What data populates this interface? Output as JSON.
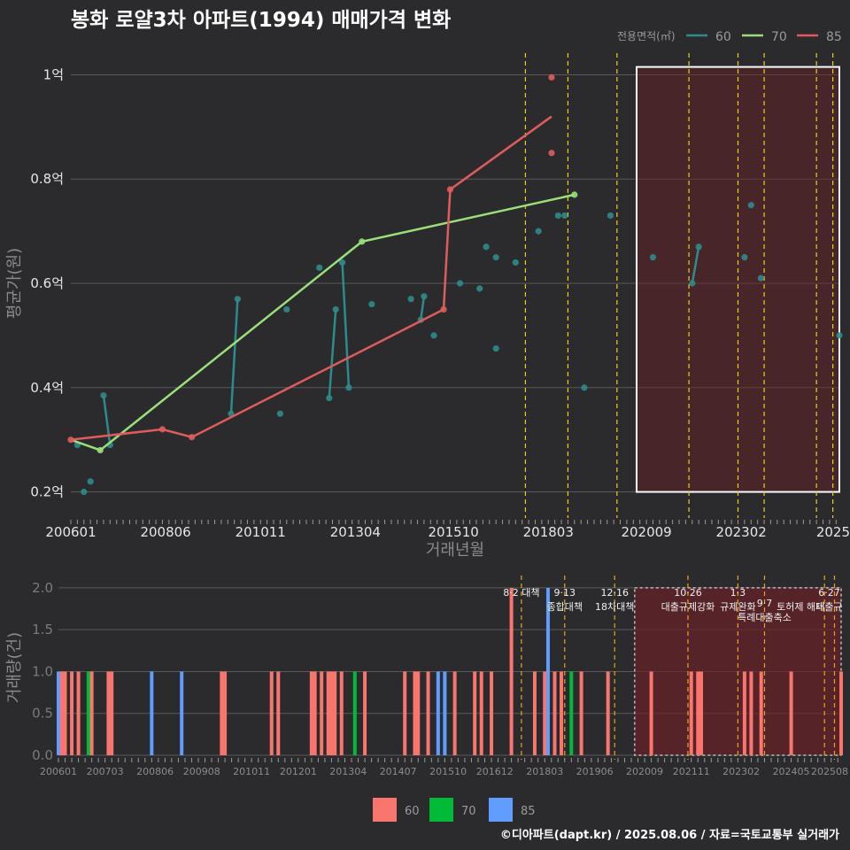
{
  "colors": {
    "s60": "#2e8b8b",
    "s70": "#99e07a",
    "s85": "#e05c5c",
    "b60": "#f8766d",
    "b70": "#00ba38",
    "b85": "#619cff"
  },
  "chart_data": [
    {
      "type": "line",
      "title": "봉화 로얄3차 아파트(1994) 매매가격 변화",
      "xlabel": "거래년월",
      "ylabel": "평균가(원)",
      "xlim": [
        "2006-01",
        "2025-08"
      ],
      "ylim": [
        0.15,
        1.05
      ],
      "x_ticks": [
        "200601",
        "200806",
        "201011",
        "201304",
        "201510",
        "201803",
        "202009",
        "202302",
        "2025"
      ],
      "y_ticks": [
        0.2,
        0.4,
        0.6,
        0.8,
        1.0
      ],
      "y_tick_labels": [
        "0.2억",
        "0.4억",
        "0.6억",
        "0.8억",
        "1억"
      ],
      "grid": true,
      "legend": {
        "title": "전용면적(㎡)",
        "position": "top-right",
        "items": [
          "60",
          "70",
          "85"
        ]
      },
      "series": [
        {
          "name": "60",
          "color": "s60",
          "points": [
            [
              "2006-03",
              0.29
            ],
            [
              "2006-05",
              0.2
            ],
            [
              "2006-07",
              0.22
            ],
            [
              "2006-11",
              0.385
            ],
            [
              "2007-01",
              0.29
            ],
            [
              "2010-02",
              0.35
            ],
            [
              "2010-04",
              0.57
            ],
            [
              "2011-05",
              0.35
            ],
            [
              "2011-07",
              0.55
            ],
            [
              "2012-05",
              0.63
            ],
            [
              "2012-08",
              0.38
            ],
            [
              "2012-10",
              0.55
            ],
            [
              "2012-12",
              0.64
            ],
            [
              "2013-02",
              0.4
            ],
            [
              "2013-09",
              0.56
            ],
            [
              "2014-09",
              0.57
            ],
            [
              "2014-12",
              0.53
            ],
            [
              "2015-01",
              0.575
            ],
            [
              "2015-04",
              0.5
            ],
            [
              "2015-12",
              0.6
            ],
            [
              "2016-06",
              0.59
            ],
            [
              "2016-08",
              0.67
            ],
            [
              "2016-11",
              0.475
            ],
            [
              "2016-11",
              0.65
            ],
            [
              "2017-05",
              0.64
            ],
            [
              "2017-12",
              0.7
            ],
            [
              "2018-06",
              0.73
            ],
            [
              "2018-08",
              0.73
            ],
            [
              "2019-02",
              0.4
            ],
            [
              "2019-10",
              0.73
            ],
            [
              "2020-11",
              0.65
            ],
            [
              "2021-11",
              0.6
            ],
            [
              "2022-01",
              0.67
            ],
            [
              "2023-03",
              0.65
            ],
            [
              "2023-05",
              0.75
            ],
            [
              "2023-08",
              0.61
            ],
            [
              "2025-08",
              0.5
            ]
          ],
          "lines": [
            [
              [
                "2006-11",
                0.385
              ],
              [
                "2007-01",
                0.29
              ]
            ],
            [
              [
                "2010-02",
                0.35
              ],
              [
                "2010-04",
                0.57
              ]
            ],
            [
              [
                "2012-08",
                0.38
              ],
              [
                "2012-10",
                0.55
              ]
            ],
            [
              [
                "2012-12",
                0.64
              ],
              [
                "2013-02",
                0.4
              ]
            ],
            [
              [
                "2014-12",
                0.53
              ],
              [
                "2015-01",
                0.575
              ]
            ],
            [
              [
                "2021-11",
                0.6
              ],
              [
                "2022-01",
                0.67
              ]
            ]
          ]
        },
        {
          "name": "70",
          "color": "s70",
          "points": [
            [
              "2006-10",
              0.28
            ],
            [
              "2013-06",
              0.68
            ],
            [
              "2018-11",
              0.77
            ]
          ],
          "lines": [
            [
              [
                "2006-01",
                0.3
              ],
              [
                "2006-10",
                0.28
              ],
              [
                "2013-06",
                0.68
              ],
              [
                "2018-11",
                0.77
              ]
            ]
          ]
        },
        {
          "name": "85",
          "color": "s85",
          "points": [
            [
              "2006-01",
              0.3
            ],
            [
              "2008-05",
              0.32
            ],
            [
              "2009-02",
              0.305
            ],
            [
              "2015-07",
              0.55
            ],
            [
              "2015-09",
              0.78
            ],
            [
              "2018-04",
              0.85
            ],
            [
              "2018-04",
              0.995
            ]
          ],
          "lines": [
            [
              [
                "2006-01",
                0.3
              ],
              [
                "2008-05",
                0.32
              ],
              [
                "2009-02",
                0.305
              ],
              [
                "2015-07",
                0.55
              ],
              [
                "2015-09",
                0.78
              ],
              [
                "2018-04",
                0.92
              ]
            ]
          ]
        }
      ],
      "event_lines": [
        "2017-08",
        "2018-09",
        "2019-12",
        "2021-10",
        "2023-01",
        "2023-09",
        "2025-01",
        "2025-06"
      ],
      "highlight_region": [
        "2020-06",
        "2025-08"
      ]
    },
    {
      "type": "bar",
      "xlabel": "",
      "ylabel": "거래량(건)",
      "ylim": [
        0,
        2.0
      ],
      "x_ticks": [
        "200601",
        "200703",
        "200806",
        "200908",
        "201011",
        "201201",
        "201304",
        "201407",
        "201510",
        "201612",
        "201803",
        "201906",
        "202009",
        "202111",
        "202302",
        "202405",
        "202508"
      ],
      "y_ticks": [
        0.0,
        0.5,
        1.0,
        1.5,
        2.0
      ],
      "y_tick_labels": [
        "0.0",
        "0.5",
        "1.0",
        "1.5",
        "2.0"
      ],
      "legend": {
        "position": "bottom",
        "items": [
          "60",
          "70",
          "85"
        ]
      },
      "bars": [
        [
          "2006-01",
          1,
          "85"
        ],
        [
          "2006-02",
          1,
          "60"
        ],
        [
          "2006-03",
          1,
          "60"
        ],
        [
          "2006-05",
          1,
          "60"
        ],
        [
          "2006-07",
          1,
          "60"
        ],
        [
          "2006-10",
          1,
          "70"
        ],
        [
          "2006-11",
          1,
          "60"
        ],
        [
          "2007-04",
          1,
          "60"
        ],
        [
          "2007-05",
          1,
          "60"
        ],
        [
          "2008-05",
          1,
          "85"
        ],
        [
          "2009-02",
          1,
          "85"
        ],
        [
          "2010-02",
          1,
          "60"
        ],
        [
          "2010-03",
          1,
          "60"
        ],
        [
          "2011-05",
          1,
          "60"
        ],
        [
          "2011-07",
          1,
          "60"
        ],
        [
          "2012-05",
          1,
          "60"
        ],
        [
          "2012-06",
          1,
          "60"
        ],
        [
          "2012-08",
          1,
          "60"
        ],
        [
          "2012-10",
          1,
          "60"
        ],
        [
          "2012-11",
          1,
          "60"
        ],
        [
          "2012-12",
          1,
          "60"
        ],
        [
          "2013-02",
          1,
          "60"
        ],
        [
          "2013-06",
          1,
          "70"
        ],
        [
          "2013-09",
          1,
          "60"
        ],
        [
          "2014-09",
          1,
          "60"
        ],
        [
          "2014-12",
          1,
          "60"
        ],
        [
          "2015-01",
          1,
          "60"
        ],
        [
          "2015-04",
          1,
          "60"
        ],
        [
          "2015-07",
          1,
          "85"
        ],
        [
          "2015-09",
          1,
          "85"
        ],
        [
          "2015-12",
          1,
          "60"
        ],
        [
          "2016-06",
          1,
          "60"
        ],
        [
          "2016-08",
          1,
          "60"
        ],
        [
          "2016-11",
          1,
          "60"
        ],
        [
          "2017-05",
          2,
          "60"
        ],
        [
          "2017-12",
          1,
          "60"
        ],
        [
          "2018-03",
          1,
          "60"
        ],
        [
          "2018-04",
          2,
          "85"
        ],
        [
          "2018-06",
          1,
          "60"
        ],
        [
          "2018-08",
          1,
          "60"
        ],
        [
          "2018-11",
          1,
          "70"
        ],
        [
          "2019-02",
          1,
          "60"
        ],
        [
          "2019-10",
          1,
          "60"
        ],
        [
          "2020-11",
          1,
          "60"
        ],
        [
          "2021-11",
          1,
          "60"
        ],
        [
          "2022-01",
          1,
          "60"
        ],
        [
          "2022-02",
          1,
          "60"
        ],
        [
          "2023-03",
          1,
          "60"
        ],
        [
          "2023-05",
          1,
          "60"
        ],
        [
          "2023-08",
          1,
          "60"
        ],
        [
          "2024-05",
          1,
          "60"
        ],
        [
          "2025-08",
          1,
          "60"
        ]
      ],
      "events": [
        {
          "date": "2017-08",
          "lines": [
            "8·2 대책"
          ]
        },
        {
          "date": "2018-09",
          "lines": [
            "9·13",
            "종합대책"
          ]
        },
        {
          "date": "2019-12",
          "lines": [
            "12·16",
            "18차대책"
          ]
        },
        {
          "date": "2021-10",
          "lines": [
            "10·26",
            "대출규제강화"
          ]
        },
        {
          "date": "2023-01",
          "lines": [
            "1·3",
            "규제완화"
          ]
        },
        {
          "date": "2023-09",
          "lines": [
            "9·7",
            "특례대출축소"
          ]
        },
        {
          "date": "2025-06",
          "lines": [
            "6·27",
            "대출규"
          ]
        },
        {
          "date": "2025-03",
          "lines": [
            "",
            "토허제 해제"
          ]
        }
      ],
      "highlight_region": [
        "2020-06",
        "2025-08"
      ]
    }
  ],
  "footer": {
    "credit": "©디아파트(dapt.kr) / 2025.08.06 / 자료=국토교통부 실거래가"
  }
}
